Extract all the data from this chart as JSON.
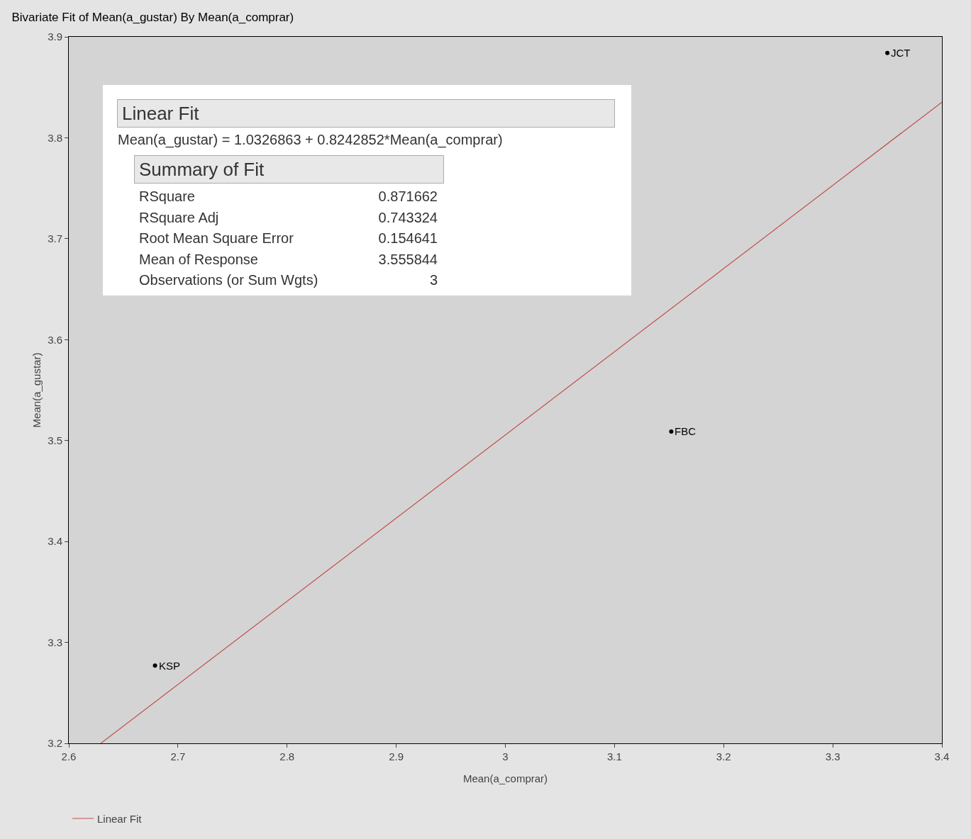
{
  "chart_data": {
    "type": "scatter",
    "title": "Bivariate Fit of Mean(a_gustar) By Mean(a_comprar)",
    "xlabel": "Mean(a_comprar)",
    "ylabel": "Mean(a_gustar)",
    "series": [
      {
        "color": "#000000",
        "x": [
          2.679,
          3.152,
          3.35
        ],
        "values": [
          3.277,
          3.509,
          3.884
        ]
      },
      {
        "type": "line",
        "name": "Linear Fit",
        "color": "#c0504d",
        "x": [
          2.6293,
          3.4
        ],
        "values": [
          3.2,
          3.8353
        ]
      }
    ],
    "xlim": [
      2.6,
      3.4
    ],
    "xticks": [
      2.6,
      2.7,
      2.8,
      2.9,
      3,
      3.1,
      3.2,
      3.3,
      3.4
    ],
    "ylim": [
      3.2,
      3.9
    ],
    "yticks": [
      3.2,
      3.3,
      3.4,
      3.5,
      3.6,
      3.7,
      3.8,
      3.9
    ],
    "grid": false,
    "legend": "bottom left",
    "line_style": "solid",
    "annotations": [
      "Linear Fit",
      "Mean(a_gustar) = 1.0326863 + 0.8242852*Mean(a_comprar)",
      "Summary of Fit",
      "RSquare",
      "0.871662",
      "RSquare Adj",
      "0.743324",
      "Root Mean Square Error",
      "0.154641",
      "Mean of Response",
      "3.555844",
      "Observations (or Sum Wgts)",
      "3",
      {
        "text": "KSP",
        "x": 2.679,
        "y": 3.277
      },
      {
        "text": "FBC",
        "x": 3.152,
        "y": 3.509
      },
      {
        "text": "JCT",
        "x": 3.35,
        "y": 3.884
      }
    ]
  }
}
